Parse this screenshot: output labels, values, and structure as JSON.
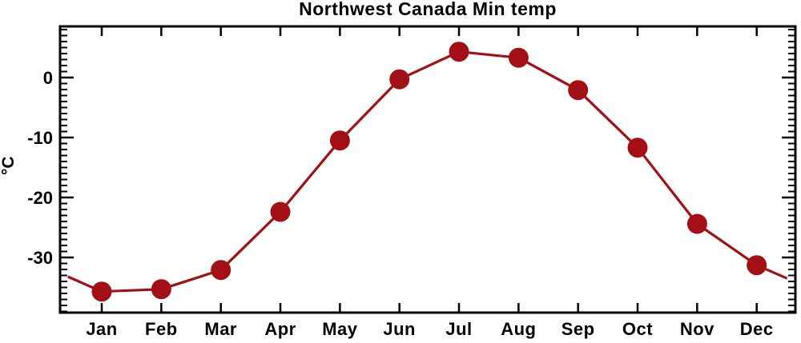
{
  "chart_data": {
    "type": "line",
    "title": "Northwest Canada Min temp",
    "xlabel": "",
    "ylabel": "°C",
    "categories": [
      "Jan",
      "Feb",
      "Mar",
      "Apr",
      "May",
      "Jun",
      "Jul",
      "Aug",
      "Sep",
      "Oct",
      "Nov",
      "Dec"
    ],
    "x": [
      1,
      2,
      3,
      4,
      5,
      6,
      7,
      8,
      9,
      10,
      11,
      12
    ],
    "series": [
      {
        "name": "Min temp",
        "values": [
          -35.7,
          -35.3,
          -32.1,
          -22.4,
          -10.5,
          -0.3,
          4.3,
          3.3,
          -2.1,
          -11.7,
          -24.4,
          -31.3
        ]
      }
    ],
    "edge_points": [
      {
        "x": 0.43,
        "y": -33.2
      },
      {
        "x": 12.51,
        "y": -33.5
      }
    ],
    "xlim": [
      0.3,
      12.65
    ],
    "ylim": [
      -39.2,
      8.53
    ],
    "y_major_ticks": [
      0,
      -10,
      -20,
      -30
    ],
    "y_major_labels": [
      "0",
      "-10",
      "-20",
      "-30"
    ],
    "y_minor_step": 1,
    "grid": false,
    "legend": "none",
    "line_color": "#a21015",
    "marker": "circle",
    "marker_diameter_px": 25,
    "frame_color": "#000000",
    "background": "#ffffff"
  }
}
